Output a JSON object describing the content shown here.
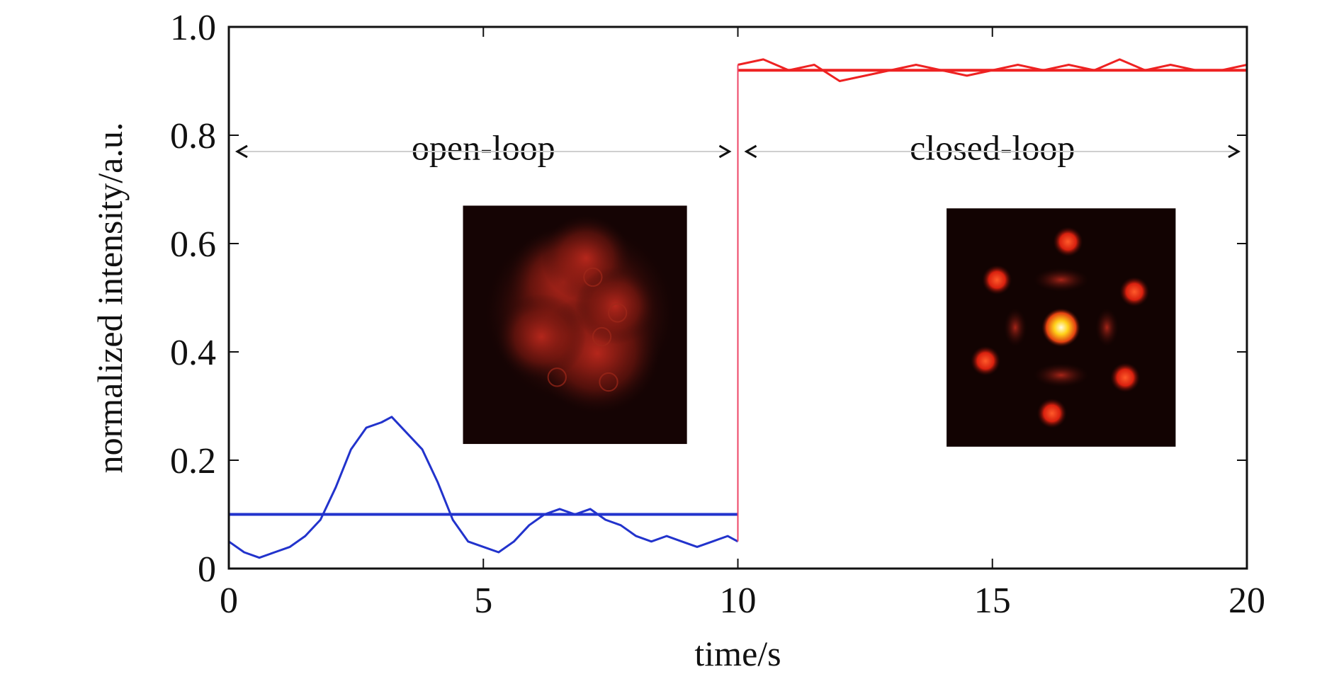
{
  "chart_data": {
    "type": "line",
    "xlabel": "time/s",
    "ylabel": "normalized intensity/a.u.",
    "xlim": [
      0,
      20
    ],
    "ylim": [
      0,
      1.0
    ],
    "x_ticks": [
      0,
      5,
      10,
      15,
      20
    ],
    "x_tick_labels": [
      "0",
      "5",
      "10",
      "15",
      "20"
    ],
    "y_ticks": [
      0,
      0.2,
      0.4,
      0.6,
      0.8,
      1.0
    ],
    "y_tick_labels": [
      "0",
      "0.2",
      "0.4",
      "0.6",
      "0.8",
      "1.0"
    ],
    "grid": false,
    "legend": "none",
    "annotations": {
      "open_label": "open-loop",
      "closed_label": "closed-loop",
      "arrow_level_y": 0.77,
      "open_span_x": [
        0,
        10
      ],
      "closed_span_x": [
        10,
        20
      ]
    },
    "series": [
      {
        "color": "#2233cc",
        "x": [
          0.0,
          0.3,
          0.6,
          0.9,
          1.2,
          1.5,
          1.8,
          2.1,
          2.4,
          2.7,
          3.0,
          3.2,
          3.5,
          3.8,
          4.1,
          4.4,
          4.7,
          5.0,
          5.3,
          5.6,
          5.9,
          6.2,
          6.5,
          6.8,
          7.1,
          7.4,
          7.7,
          8.0,
          8.3,
          8.6,
          8.9,
          9.2,
          9.5,
          9.8,
          10.0
        ],
        "y": [
          0.05,
          0.03,
          0.02,
          0.03,
          0.04,
          0.06,
          0.09,
          0.15,
          0.22,
          0.26,
          0.27,
          0.28,
          0.25,
          0.22,
          0.16,
          0.09,
          0.05,
          0.04,
          0.03,
          0.05,
          0.08,
          0.1,
          0.11,
          0.1,
          0.11,
          0.09,
          0.08,
          0.06,
          0.05,
          0.06,
          0.05,
          0.04,
          0.05,
          0.06,
          0.05
        ]
      },
      {
        "color": "#2233cc",
        "x": [
          0,
          10
        ],
        "y": [
          0.1,
          0.1
        ]
      },
      {
        "color": "#ee2222",
        "x": [
          10.0,
          10.5,
          11.0,
          11.5,
          12.0,
          12.5,
          13.0,
          13.5,
          14.0,
          14.5,
          15.0,
          15.5,
          16.0,
          16.5,
          17.0,
          17.5,
          18.0,
          18.5,
          19.0,
          19.5,
          20.0
        ],
        "y": [
          0.93,
          0.94,
          0.92,
          0.93,
          0.9,
          0.91,
          0.92,
          0.93,
          0.92,
          0.91,
          0.92,
          0.93,
          0.92,
          0.93,
          0.92,
          0.94,
          0.92,
          0.93,
          0.92,
          0.92,
          0.93
        ]
      },
      {
        "color": "#ee2222",
        "x": [
          10,
          20
        ],
        "y": [
          0.92,
          0.92
        ]
      }
    ],
    "insets": [
      {
        "name": "open-loop far-field pattern",
        "x_range": [
          4.6,
          9.0
        ],
        "y_range": [
          0.23,
          0.67
        ]
      },
      {
        "name": "closed-loop far-field pattern",
        "x_range": [
          14.1,
          18.6
        ],
        "y_range": [
          0.225,
          0.665
        ]
      }
    ]
  }
}
